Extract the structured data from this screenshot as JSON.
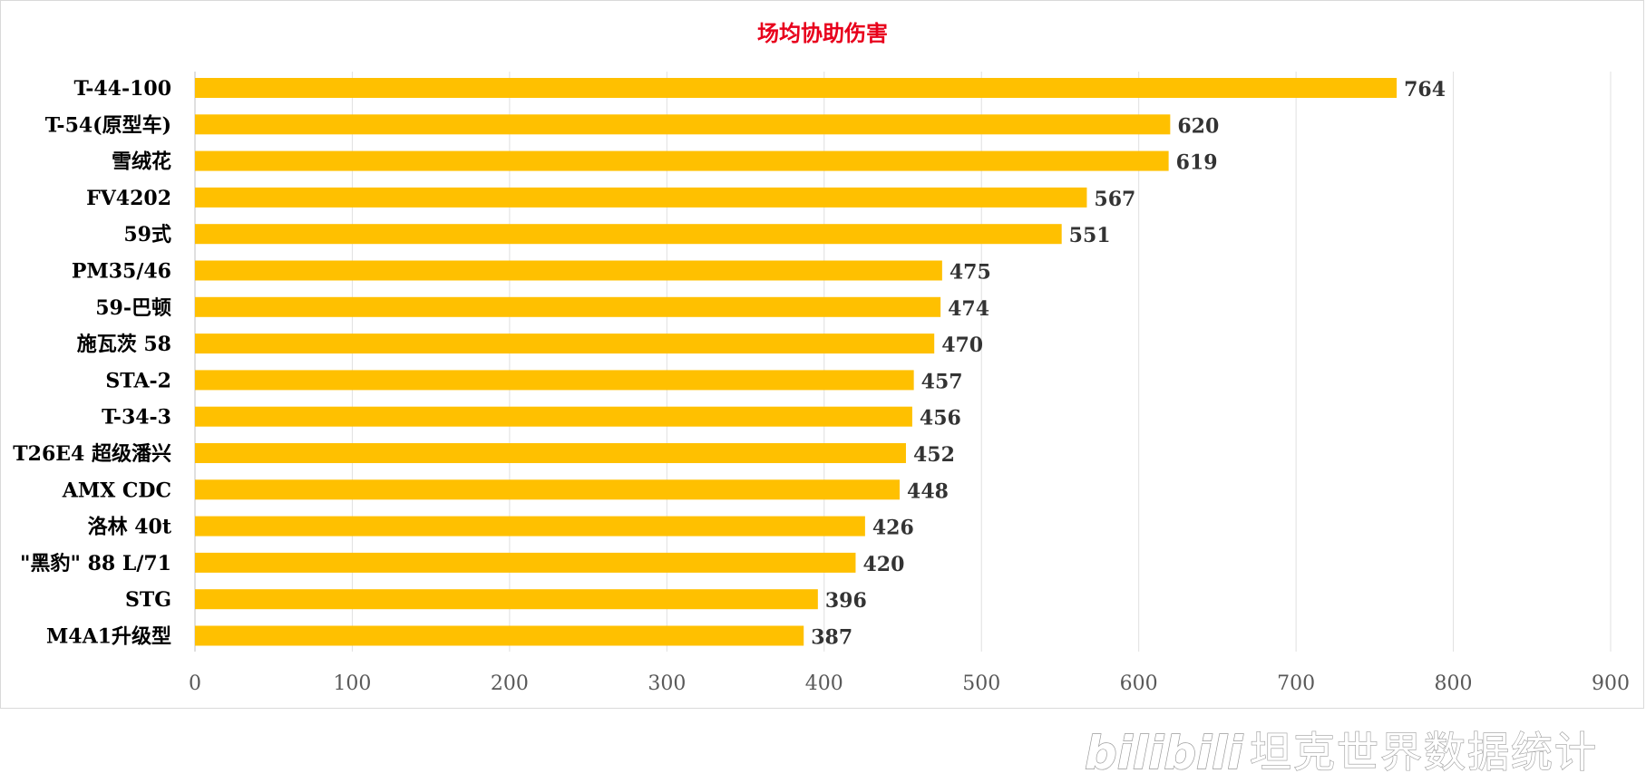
{
  "chart_data": {
    "type": "bar",
    "orientation": "horizontal",
    "title": "场均协助伤害",
    "title_color": "#e8001c",
    "bar_color": "#ffc000",
    "categories": [
      "T-44-100",
      "T-54(原型车)",
      "雪绒花",
      "FV4202",
      "59式",
      "PM35/46",
      "59-巴顿",
      "施瓦茨 58",
      "STA-2",
      "T-34-3",
      "T26E4 超级潘兴",
      "AMX CDC",
      "洛林 40t",
      "\"黑豹\" 88 L/71",
      "STG",
      "M4A1升级型"
    ],
    "values": [
      764,
      620,
      619,
      567,
      551,
      475,
      474,
      470,
      457,
      456,
      452,
      448,
      426,
      420,
      396,
      387
    ],
    "xlim": [
      0,
      900
    ],
    "xticks": [
      0,
      100,
      200,
      300,
      400,
      500,
      600,
      700,
      800,
      900
    ],
    "xlabel": "",
    "ylabel": "",
    "grid": true,
    "legend": "none"
  },
  "watermark": {
    "logo": "bilibili",
    "text": "坦克世界数据统计"
  }
}
